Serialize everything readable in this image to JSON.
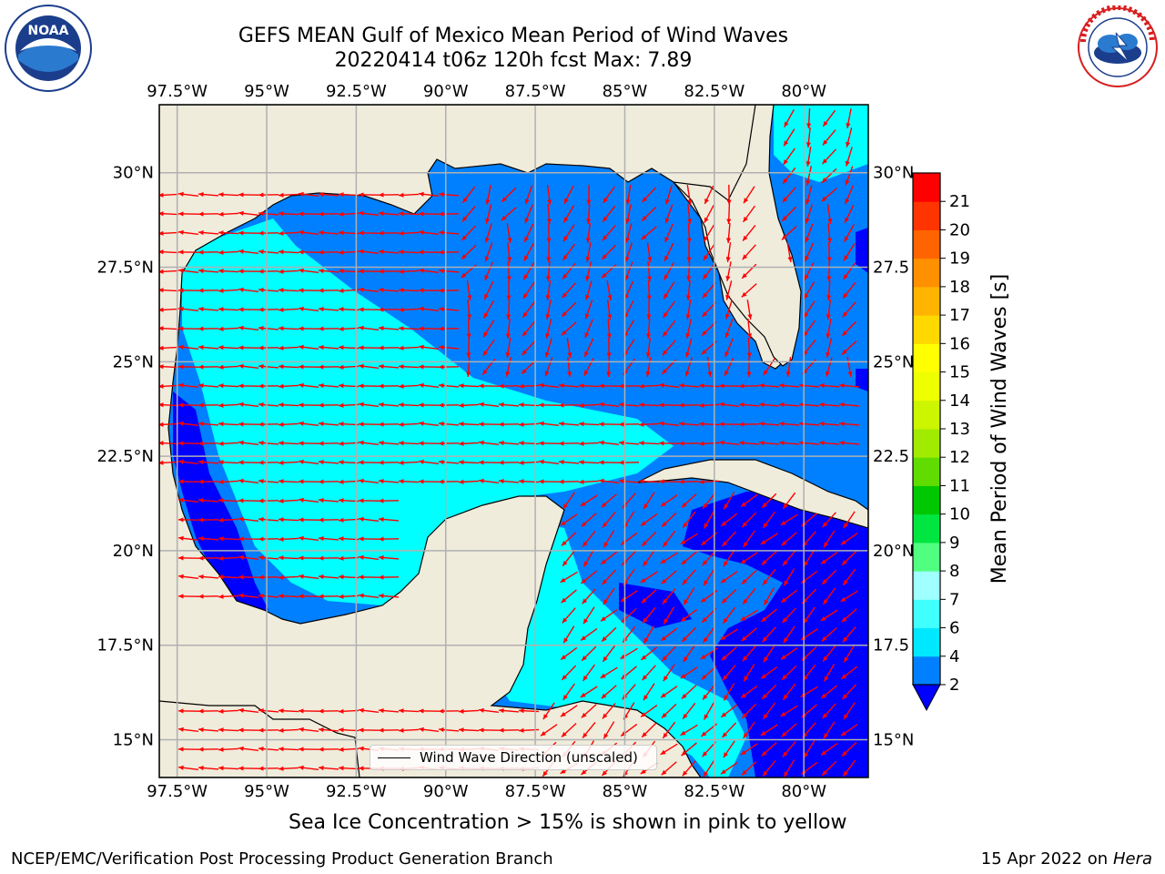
{
  "title": {
    "line1": "GEFS MEAN Gulf of Mexico Mean Period of Wind Waves",
    "line2": "20220414 t06z 120h fcst   Max: 7.89"
  },
  "map": {
    "lon_range": [
      -98,
      -78.2
    ],
    "lat_range": [
      14,
      31.8
    ],
    "x_ticks": [
      "97.5°W",
      "95°W",
      "92.5°W",
      "90°W",
      "87.5°W",
      "85°W",
      "82.5°W",
      "80°W"
    ],
    "x_tick_values": [
      -97.5,
      -95,
      -92.5,
      -90,
      -87.5,
      -85,
      -82.5,
      -80
    ],
    "y_ticks_left": [
      "30°N",
      "27.5°N",
      "25°N",
      "22.5°N",
      "20°N",
      "17.5°N",
      "15°N"
    ],
    "y_ticks_right": [
      "30°N",
      "27.5",
      "25°N",
      "22.5",
      "20°N",
      "17.5",
      "15°N"
    ],
    "y_tick_values": [
      30,
      27.5,
      25,
      22.5,
      20,
      17.5,
      15
    ],
    "land_color": "#efecdc",
    "grid": true,
    "arrow_color": "#ff0000"
  },
  "legend": {
    "label": "Wind Wave Direction (unscaled)",
    "placement": "lower-center"
  },
  "colorbar": {
    "label": "Mean Period of Wind Waves [s]",
    "ticks": [
      "2",
      "4",
      "6",
      "7",
      "8",
      "9",
      "10",
      "11",
      "12",
      "13",
      "14",
      "15",
      "16",
      "17",
      "18",
      "19",
      "20",
      "21"
    ],
    "colors": [
      "#0080ff",
      "#00e8ff",
      "#40ffff",
      "#a0ffff",
      "#50ff80",
      "#00e640",
      "#00c800",
      "#60dc00",
      "#a0eb00",
      "#ccf500",
      "#eeff00",
      "#ffff00",
      "#ffd800",
      "#ffb400",
      "#ff9000",
      "#ff6400",
      "#ff3400",
      "#ff0000"
    ],
    "under_color": "#0000ff"
  },
  "contour_colors": {
    "lt2": "#0000ff",
    "c2_4": "#0080ff",
    "c4_6": "#00ffff"
  },
  "note": "Sea Ice Concentration > 15% is shown in pink to yellow",
  "footer": {
    "left": "NCEP/EMC/Verification Post Processing Product Generation Branch",
    "right_date": "15 Apr 2022 on ",
    "right_host": "Hera"
  },
  "logos": {
    "noaa": {
      "text": "NOAA",
      "icon": "noaa-logo-icon"
    },
    "nws": {
      "icon": "nws-logo-icon"
    }
  }
}
